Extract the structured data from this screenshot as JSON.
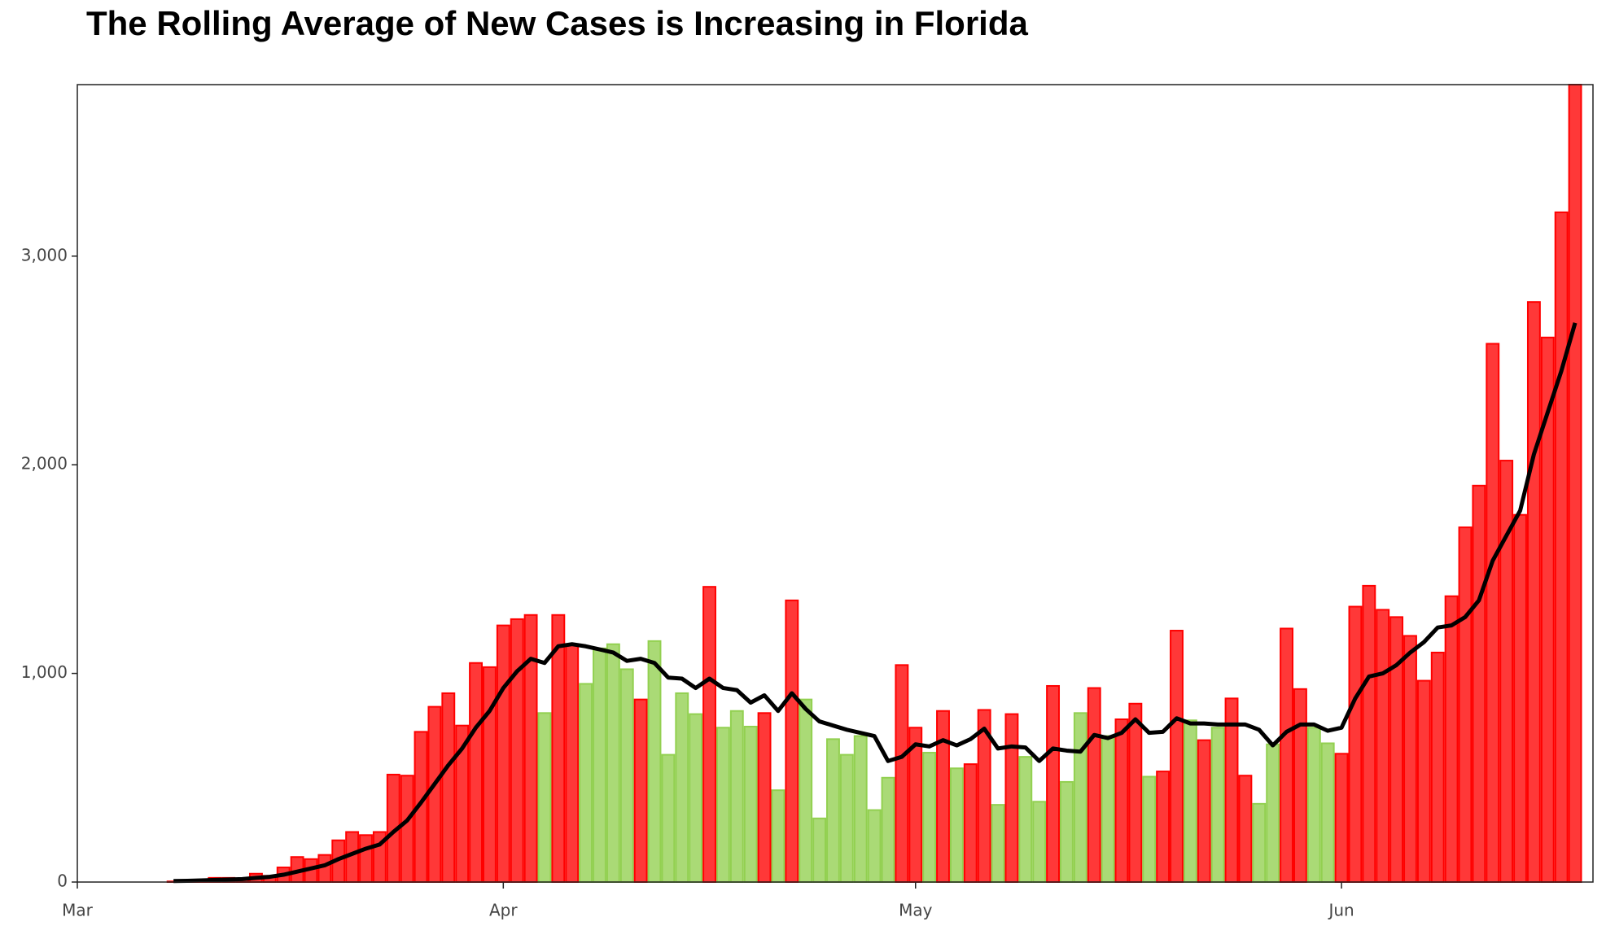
{
  "chart_data": {
    "type": "bar",
    "title": "The Rolling Average of New Cases is Increasing in Florida",
    "x": [
      0,
      1,
      2,
      3,
      4,
      5,
      6,
      7,
      8,
      9,
      10,
      11,
      12,
      13,
      14,
      15,
      16,
      17,
      18,
      19,
      20,
      21,
      22,
      23,
      24,
      25,
      26,
      27,
      28,
      29,
      30,
      31,
      32,
      33,
      34,
      35,
      36,
      37,
      38,
      39,
      40,
      41,
      42,
      43,
      44,
      45,
      46,
      47,
      48,
      49,
      50,
      51,
      52,
      53,
      54,
      55,
      56,
      57,
      58,
      59,
      60,
      61,
      62,
      63,
      64,
      65,
      66,
      67,
      68,
      69,
      70,
      71,
      72,
      73,
      74,
      75,
      76,
      77,
      78,
      79,
      80,
      81,
      82,
      83,
      84,
      85,
      86,
      87,
      88,
      89,
      90,
      91,
      92,
      93,
      94,
      95,
      96,
      97,
      98,
      99,
      100,
      101,
      102,
      103,
      104,
      105,
      106,
      107,
      108,
      109
    ],
    "series": [
      {
        "type": "bar",
        "values": [
          0,
          0,
          0,
          0,
          0,
          0,
          0,
          3,
          5,
          8,
          20,
          20,
          15,
          40,
          30,
          70,
          120,
          110,
          130,
          200,
          240,
          225,
          240,
          515,
          510,
          720,
          840,
          905,
          750,
          1050,
          1030,
          1230,
          1260,
          1280,
          810,
          1280,
          1140,
          950,
          1120,
          1140,
          1020,
          875,
          1155,
          610,
          905,
          805,
          1415,
          740,
          820,
          745,
          810,
          440,
          1350,
          875,
          305,
          685,
          610,
          700,
          345,
          500,
          1040,
          740,
          620,
          820,
          545,
          565,
          825,
          370,
          805,
          600,
          385,
          940,
          480,
          810,
          930,
          700,
          780,
          855,
          505,
          530,
          1205,
          775,
          680,
          740,
          880,
          510,
          375,
          660,
          1215,
          925,
          740,
          665,
          615,
          1320,
          1420,
          1305,
          1270,
          1180,
          965,
          1100,
          1370,
          1700,
          1900,
          2580,
          2020,
          1760,
          2780,
          2610,
          3210,
          3822
        ],
        "colors": [
          "#ff0000",
          "#ff0000",
          "#ff0000",
          "#ff0000",
          "#ff0000",
          "#ff0000",
          "#ff0000",
          "#ff0000",
          "#ff0000",
          "#ff0000",
          "#ff0000",
          "#ff0000",
          "#ff0000",
          "#ff0000",
          "#ff0000",
          "#ff0000",
          "#ff0000",
          "#ff0000",
          "#ff0000",
          "#ff0000",
          "#ff0000",
          "#ff0000",
          "#ff0000",
          "#ff0000",
          "#ff0000",
          "#ff0000",
          "#ff0000",
          "#ff0000",
          "#ff0000",
          "#ff0000",
          "#ff0000",
          "#ff0000",
          "#ff0000",
          "#ff0000",
          "#92d050",
          "#ff0000",
          "#ff0000",
          "#92d050",
          "#92d050",
          "#92d050",
          "#92d050",
          "#ff0000",
          "#92d050",
          "#92d050",
          "#92d050",
          "#92d050",
          "#ff0000",
          "#92d050",
          "#92d050",
          "#92d050",
          "#ff0000",
          "#92d050",
          "#ff0000",
          "#92d050",
          "#92d050",
          "#92d050",
          "#92d050",
          "#92d050",
          "#92d050",
          "#92d050",
          "#ff0000",
          "#ff0000",
          "#92d050",
          "#ff0000",
          "#92d050",
          "#ff0000",
          "#ff0000",
          "#92d050",
          "#ff0000",
          "#92d050",
          "#92d050",
          "#ff0000",
          "#92d050",
          "#92d050",
          "#ff0000",
          "#92d050",
          "#ff0000",
          "#ff0000",
          "#92d050",
          "#ff0000",
          "#ff0000",
          "#92d050",
          "#ff0000",
          "#92d050",
          "#ff0000",
          "#ff0000",
          "#92d050",
          "#92d050",
          "#ff0000",
          "#ff0000",
          "#92d050",
          "#92d050",
          "#ff0000",
          "#ff0000",
          "#ff0000",
          "#ff0000",
          "#ff0000",
          "#ff0000",
          "#ff0000",
          "#ff0000",
          "#ff0000",
          "#ff0000",
          "#ff0000",
          "#ff0000",
          "#ff0000",
          "#ff0000",
          "#ff0000",
          "#ff0000",
          "#ff0000",
          "#ff0000"
        ]
      },
      {
        "type": "line",
        "color": "#000000",
        "values": [
          null,
          null,
          null,
          null,
          null,
          null,
          null,
          5,
          6,
          8,
          10,
          12,
          14,
          20,
          25,
          35,
          50,
          65,
          80,
          110,
          135,
          160,
          180,
          240,
          295,
          380,
          470,
          560,
          640,
          740,
          820,
          930,
          1010,
          1070,
          1050,
          1130,
          1140,
          1130,
          1115,
          1100,
          1060,
          1070,
          1050,
          980,
          975,
          930,
          975,
          930,
          920,
          860,
          895,
          820,
          905,
          830,
          770,
          750,
          730,
          715,
          700,
          580,
          600,
          660,
          650,
          680,
          655,
          685,
          735,
          640,
          650,
          645,
          580,
          640,
          630,
          625,
          705,
          690,
          715,
          780,
          715,
          720,
          785,
          760,
          760,
          755,
          755,
          755,
          730,
          655,
          720,
          755,
          755,
          725,
          740,
          880,
          985,
          1000,
          1040,
          1100,
          1150,
          1220,
          1230,
          1270,
          1350,
          1540,
          1660,
          1780,
          2050,
          2250,
          2450,
          2680
        ]
      }
    ],
    "xlim": [
      0,
      110.3
    ],
    "xticks": [
      {
        "value": 0,
        "label": "Mar"
      },
      {
        "value": 31,
        "label": "Apr"
      },
      {
        "value": 61,
        "label": "May"
      },
      {
        "value": 92,
        "label": "Jun"
      }
    ],
    "ylim": [
      0,
      3822
    ],
    "yticks": [
      0,
      {
        "value": 1000,
        "label": "1,000"
      },
      {
        "value": 2000,
        "label": "2,000"
      },
      {
        "value": 3000,
        "label": "3,000"
      }
    ]
  }
}
